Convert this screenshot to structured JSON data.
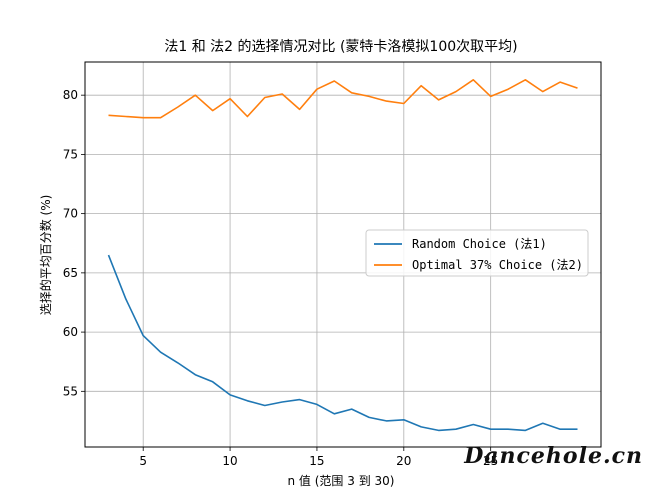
{
  "chart_data": {
    "type": "line",
    "title": "法1 和 法2 的选择情况对比 (蒙特卡洛模拟100次取平均)",
    "xlabel": "n 值 (范围 3 到 30)",
    "ylabel": "选择的平均百分数 (%)",
    "xlim": [
      1.65,
      31.35
    ],
    "ylim": [
      50.3,
      82.8
    ],
    "x_ticks": [
      5,
      10,
      15,
      20,
      25
    ],
    "y_ticks": [
      55,
      60,
      65,
      70,
      75,
      80
    ],
    "grid": true,
    "legend_position": "center-right",
    "x": [
      3,
      4,
      5,
      6,
      7,
      8,
      9,
      10,
      11,
      12,
      13,
      14,
      15,
      16,
      17,
      18,
      19,
      20,
      21,
      22,
      23,
      24,
      25,
      26,
      27,
      28,
      29,
      30
    ],
    "series": [
      {
        "name": "Random Choice (法1)",
        "color": "#1f77b4",
        "values": [
          66.5,
          62.8,
          59.7,
          58.3,
          57.4,
          56.4,
          55.8,
          54.7,
          54.2,
          53.8,
          54.1,
          54.3,
          53.9,
          53.1,
          53.5,
          52.8,
          52.5,
          52.6,
          52.0,
          51.7,
          51.8,
          52.2,
          51.8,
          51.8,
          51.7,
          52.3,
          51.8,
          51.8
        ]
      },
      {
        "name": "Optimal 37% Choice (法2)",
        "color": "#ff7f0e",
        "values": [
          78.3,
          78.2,
          78.1,
          78.1,
          79.0,
          80.0,
          78.7,
          79.7,
          78.2,
          79.8,
          80.1,
          78.8,
          80.5,
          81.2,
          80.2,
          79.9,
          79.5,
          79.3,
          80.8,
          79.6,
          80.3,
          81.3,
          79.9,
          80.5,
          81.3,
          80.3,
          81.1,
          80.6
        ]
      }
    ]
  },
  "watermark": "Dancehole.cn"
}
